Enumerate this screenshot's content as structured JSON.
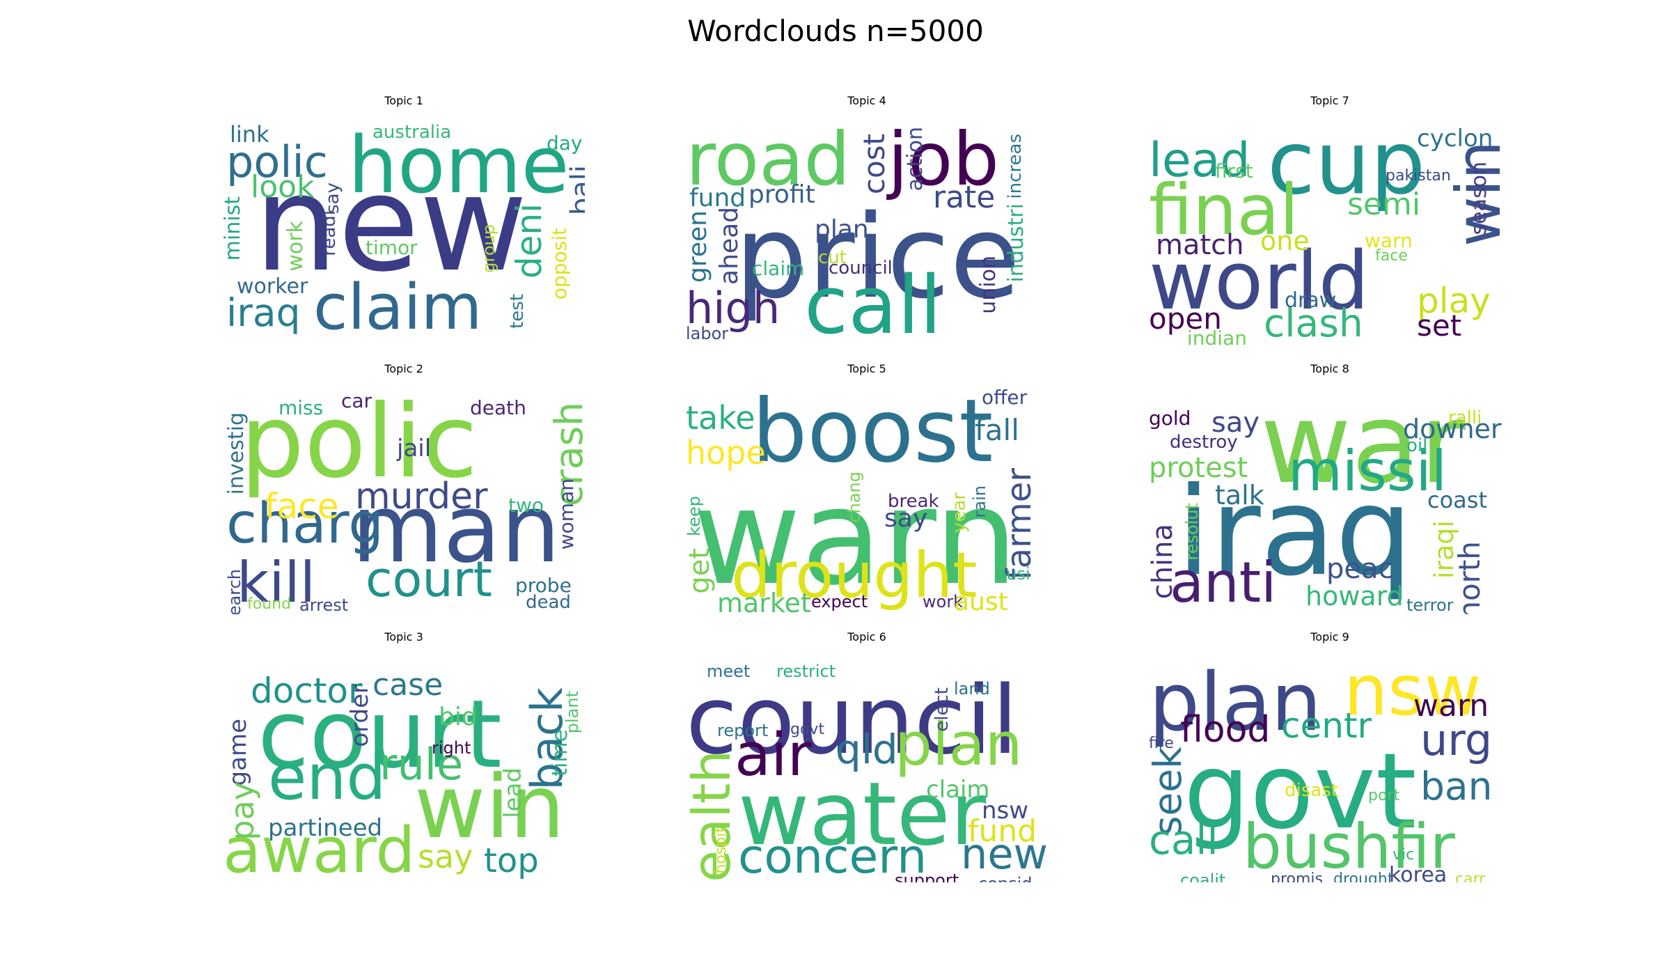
{
  "title": "Wordclouds n=5000",
  "chart_data": {
    "type": "wordcloud",
    "grid": [
      3,
      3
    ],
    "panels": [
      {
        "title": "Topic 1",
        "words": [
          {
            "text": "new",
            "color": "#3a3c86"
          },
          {
            "text": "home",
            "color": "#21a685"
          },
          {
            "text": "claim",
            "color": "#31688e"
          },
          {
            "text": "polic",
            "color": "#2e6f8e"
          },
          {
            "text": "iraq",
            "color": "#277f8e"
          },
          {
            "text": "deni",
            "color": "#2ab07f"
          },
          {
            "text": "look",
            "color": "#4ac16d"
          },
          {
            "text": "bali",
            "color": "#365c8d"
          },
          {
            "text": "link",
            "color": "#2c728e"
          },
          {
            "text": "australia",
            "color": "#35b779"
          },
          {
            "text": "day",
            "color": "#22a884"
          },
          {
            "text": "worker",
            "color": "#31688e"
          },
          {
            "text": "minist",
            "color": "#22a884"
          },
          {
            "text": "work",
            "color": "#6ece58"
          },
          {
            "text": "say",
            "color": "#3e4989"
          },
          {
            "text": "readi",
            "color": "#414487"
          },
          {
            "text": "timor",
            "color": "#5ec962"
          },
          {
            "text": "group",
            "color": "#b5de2b"
          },
          {
            "text": "test",
            "color": "#2a788e"
          },
          {
            "text": "opposit",
            "color": "#dde318"
          }
        ]
      },
      {
        "title": "Topic 4",
        "words": [
          {
            "text": "price",
            "color": "#3b528b"
          },
          {
            "text": "road",
            "color": "#5ec962"
          },
          {
            "text": "job",
            "color": "#440154"
          },
          {
            "text": "call",
            "color": "#20a386"
          },
          {
            "text": "high",
            "color": "#482878"
          },
          {
            "text": "rate",
            "color": "#3e4a89"
          },
          {
            "text": "profit",
            "color": "#355f8d"
          },
          {
            "text": "fund",
            "color": "#2a788e"
          },
          {
            "text": "cost",
            "color": "#3e4989"
          },
          {
            "text": "action",
            "color": "#3f4788"
          },
          {
            "text": "plan",
            "color": "#3b528b"
          },
          {
            "text": "green",
            "color": "#2c728e"
          },
          {
            "text": "ahead",
            "color": "#3e4989"
          },
          {
            "text": "cut",
            "color": "#b5de2b"
          },
          {
            "text": "claim",
            "color": "#35b779"
          },
          {
            "text": "council",
            "color": "#472d7b"
          },
          {
            "text": "increas",
            "color": "#2a788e"
          },
          {
            "text": "industri",
            "color": "#2ab07f"
          },
          {
            "text": "union",
            "color": "#46337e"
          },
          {
            "text": "labor",
            "color": "#3e4989"
          }
        ]
      },
      {
        "title": "Topic 7",
        "words": [
          {
            "text": "world",
            "color": "#3e4989"
          },
          {
            "text": "cup",
            "color": "#21918c"
          },
          {
            "text": "final",
            "color": "#7ad151"
          },
          {
            "text": "win",
            "color": "#3b528b"
          },
          {
            "text": "lead",
            "color": "#1f9e89"
          },
          {
            "text": "semi",
            "color": "#52c569"
          },
          {
            "text": "cyclon",
            "color": "#2c728e"
          },
          {
            "text": "first",
            "color": "#5ec962"
          },
          {
            "text": "match",
            "color": "#481f70"
          },
          {
            "text": "one",
            "color": "#c8e020"
          },
          {
            "text": "warn",
            "color": "#e5e419"
          },
          {
            "text": "pakistan",
            "color": "#3e4989"
          },
          {
            "text": "season",
            "color": "#433e85"
          },
          {
            "text": "face",
            "color": "#6ece58"
          },
          {
            "text": "draw",
            "color": "#31688e"
          },
          {
            "text": "play",
            "color": "#c8e020"
          },
          {
            "text": "open",
            "color": "#440154"
          },
          {
            "text": "clash",
            "color": "#35b779"
          },
          {
            "text": "set",
            "color": "#440154"
          },
          {
            "text": "indian",
            "color": "#6ece58"
          }
        ]
      },
      {
        "title": "Topic 2",
        "words": [
          {
            "text": "polic",
            "color": "#86d549"
          },
          {
            "text": "man",
            "color": "#3b528b"
          },
          {
            "text": "charg",
            "color": "#31688e"
          },
          {
            "text": "kill",
            "color": "#3e4989"
          },
          {
            "text": "court",
            "color": "#21918c"
          },
          {
            "text": "murder",
            "color": "#3e4a89"
          },
          {
            "text": "crash",
            "color": "#6ece58"
          },
          {
            "text": "face",
            "color": "#fde725"
          },
          {
            "text": "jail",
            "color": "#414487"
          },
          {
            "text": "miss",
            "color": "#2ab07f"
          },
          {
            "text": "car",
            "color": "#481f70"
          },
          {
            "text": "death",
            "color": "#482878"
          },
          {
            "text": "investig",
            "color": "#2c728e"
          },
          {
            "text": "two",
            "color": "#35b779"
          },
          {
            "text": "woman",
            "color": "#3e4989"
          },
          {
            "text": "probe",
            "color": "#2c728e"
          },
          {
            "text": "dead",
            "color": "#31688e"
          },
          {
            "text": "search",
            "color": "#3e4989"
          },
          {
            "text": "found",
            "color": "#86d549"
          },
          {
            "text": "arrest",
            "color": "#3e4989"
          }
        ]
      },
      {
        "title": "Topic 5",
        "words": [
          {
            "text": "warn",
            "color": "#44bf70"
          },
          {
            "text": "boost",
            "color": "#2c728e"
          },
          {
            "text": "drought",
            "color": "#dde318"
          },
          {
            "text": "take",
            "color": "#2ab07f"
          },
          {
            "text": "hope",
            "color": "#fde725"
          },
          {
            "text": "fall",
            "color": "#2c728e"
          },
          {
            "text": "offer",
            "color": "#3e4989"
          },
          {
            "text": "farmer",
            "color": "#3b528b"
          },
          {
            "text": "break",
            "color": "#482878"
          },
          {
            "text": "say",
            "color": "#3e4a89"
          },
          {
            "text": "chang",
            "color": "#7ad151"
          },
          {
            "text": "year",
            "color": "#b5de2b"
          },
          {
            "text": "rain",
            "color": "#2c728e"
          },
          {
            "text": "keep",
            "color": "#35b779"
          },
          {
            "text": "get",
            "color": "#7ad151"
          },
          {
            "text": "market",
            "color": "#52c569"
          },
          {
            "text": "expect",
            "color": "#440154"
          },
          {
            "text": "work",
            "color": "#482878"
          },
          {
            "text": "aust",
            "color": "#dde318"
          },
          {
            "text": "busi",
            "color": "#35b779"
          }
        ]
      },
      {
        "title": "Topic 8",
        "words": [
          {
            "text": "iraq",
            "color": "#2c728e"
          },
          {
            "text": "war",
            "color": "#7ad151"
          },
          {
            "text": "missil",
            "color": "#22a884"
          },
          {
            "text": "anti",
            "color": "#481f70"
          },
          {
            "text": "say",
            "color": "#3e4989"
          },
          {
            "text": "downer",
            "color": "#31688e"
          },
          {
            "text": "protest",
            "color": "#6ece58"
          },
          {
            "text": "talk",
            "color": "#2c728e"
          },
          {
            "text": "gold",
            "color": "#440154"
          },
          {
            "text": "destroy",
            "color": "#472d7b"
          },
          {
            "text": "ralli",
            "color": "#c8e020"
          },
          {
            "text": "oil",
            "color": "#2ab07f"
          },
          {
            "text": "china",
            "color": "#46337e"
          },
          {
            "text": "resolut",
            "color": "#6ece58"
          },
          {
            "text": "coast",
            "color": "#31688e"
          },
          {
            "text": "peac",
            "color": "#3b528b"
          },
          {
            "text": "howard",
            "color": "#35b779"
          },
          {
            "text": "iraqi",
            "color": "#b5de2b"
          },
          {
            "text": "north",
            "color": "#3b528b"
          },
          {
            "text": "terror",
            "color": "#2c728e"
          }
        ]
      },
      {
        "title": "Topic 3",
        "words": [
          {
            "text": "court",
            "color": "#2ab07f"
          },
          {
            "text": "win",
            "color": "#7ad151"
          },
          {
            "text": "end",
            "color": "#26ad81"
          },
          {
            "text": "award",
            "color": "#86d549"
          },
          {
            "text": "rule",
            "color": "#44bf70"
          },
          {
            "text": "back",
            "color": "#2c728e"
          },
          {
            "text": "doctor",
            "color": "#21918c"
          },
          {
            "text": "case",
            "color": "#2a788e"
          },
          {
            "text": "order",
            "color": "#3e4989"
          },
          {
            "text": "bid",
            "color": "#52c569"
          },
          {
            "text": "right",
            "color": "#440154"
          },
          {
            "text": "game",
            "color": "#3e4989"
          },
          {
            "text": "pay",
            "color": "#6ece58"
          },
          {
            "text": "partineed",
            "color": "#2c728e"
          },
          {
            "text": "lead",
            "color": "#5ec962"
          },
          {
            "text": "time",
            "color": "#2ab07f"
          },
          {
            "text": "plant",
            "color": "#52c569"
          },
          {
            "text": "say",
            "color": "#b5de2b"
          },
          {
            "text": "top",
            "color": "#21918c"
          }
        ]
      },
      {
        "title": "Topic 6",
        "words": [
          {
            "text": "council",
            "color": "#3e3a85"
          },
          {
            "text": "water",
            "color": "#35b779"
          },
          {
            "text": "plan",
            "color": "#86d549"
          },
          {
            "text": "air",
            "color": "#440154"
          },
          {
            "text": "qld",
            "color": "#2c728e"
          },
          {
            "text": "concern",
            "color": "#21918c"
          },
          {
            "text": "new",
            "color": "#2a788e"
          },
          {
            "text": "health",
            "color": "#86d549"
          },
          {
            "text": "claim",
            "color": "#52c569"
          },
          {
            "text": "nsw",
            "color": "#3e4989"
          },
          {
            "text": "fund",
            "color": "#dde318"
          },
          {
            "text": "meet",
            "color": "#2c728e"
          },
          {
            "text": "restrict",
            "color": "#2ab07f"
          },
          {
            "text": "elect",
            "color": "#3e4989"
          },
          {
            "text": "land",
            "color": "#2c728e"
          },
          {
            "text": "report",
            "color": "#2c728e"
          },
          {
            "text": "govt",
            "color": "#3e4989"
          },
          {
            "text": "hospit",
            "color": "#c8e020"
          },
          {
            "text": "support",
            "color": "#440154"
          },
          {
            "text": "consid",
            "color": "#3e4989"
          }
        ]
      },
      {
        "title": "Topic 9",
        "words": [
          {
            "text": "govt",
            "color": "#26ad81"
          },
          {
            "text": "plan",
            "color": "#3e4989"
          },
          {
            "text": "nsw",
            "color": "#fde725"
          },
          {
            "text": "bushfir",
            "color": "#52c569"
          },
          {
            "text": "flood",
            "color": "#440154"
          },
          {
            "text": "centr",
            "color": "#22a884"
          },
          {
            "text": "warn",
            "color": "#440154"
          },
          {
            "text": "urg",
            "color": "#3e4989"
          },
          {
            "text": "ban",
            "color": "#2c728e"
          },
          {
            "text": "seek",
            "color": "#2c728e"
          },
          {
            "text": "call",
            "color": "#2ab07f"
          },
          {
            "text": "fire",
            "color": "#3e4989"
          },
          {
            "text": "disast",
            "color": "#dde318"
          },
          {
            "text": "port",
            "color": "#52c569"
          },
          {
            "text": "vic",
            "color": "#35b779"
          },
          {
            "text": "coalit",
            "color": "#2ab07f"
          },
          {
            "text": "promis",
            "color": "#3e4989"
          },
          {
            "text": "drought",
            "color": "#2c728e"
          },
          {
            "text": "korea",
            "color": "#3e4989"
          },
          {
            "text": "carr",
            "color": "#b5de2b"
          }
        ]
      }
    ]
  }
}
